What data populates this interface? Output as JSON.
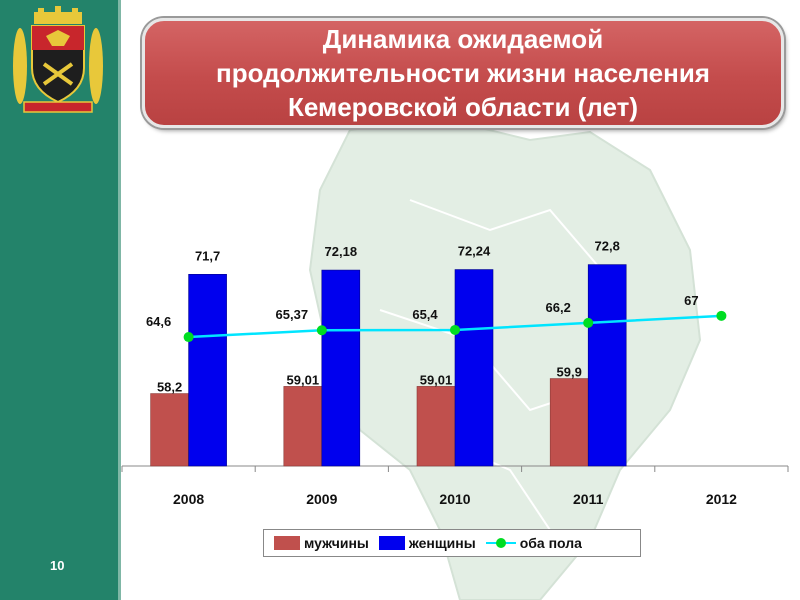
{
  "slide": {
    "title": "Динамика ожидаемой\nпродолжительности жизни населения\nКемеровской области (лет)",
    "number": "10"
  },
  "colors": {
    "sidebar": "#23836a",
    "men_bar": "#c0504d",
    "women_bar": "#0000ee",
    "both_line": "#00e5ff",
    "both_marker": "#00dd22",
    "title_fill": "#c94f4f"
  },
  "chart_data": {
    "type": "bar",
    "categories": [
      "2008",
      "2009",
      "2010",
      "2011",
      "2012"
    ],
    "series": [
      {
        "name": "мужчины",
        "type": "bar",
        "values": [
          58.2,
          59.01,
          59.01,
          59.9,
          null
        ],
        "labels": [
          "58,2",
          "59,01",
          "59,01",
          "59,9",
          ""
        ]
      },
      {
        "name": "женщины",
        "type": "bar",
        "values": [
          71.7,
          72.18,
          72.24,
          72.8,
          null
        ],
        "labels": [
          "71,7",
          "72,18",
          "72,24",
          "72,8",
          ""
        ]
      },
      {
        "name": "оба пола",
        "type": "line",
        "values": [
          64.6,
          65.37,
          65.4,
          66.2,
          67
        ],
        "labels": [
          "64,6",
          "65,37",
          "65,4",
          "66,2",
          "67"
        ]
      }
    ],
    "legend": [
      "мужчины",
      "женщины",
      "оба пола"
    ],
    "legend_position": "bottom",
    "grid": false,
    "ylim": [
      50,
      74
    ]
  }
}
